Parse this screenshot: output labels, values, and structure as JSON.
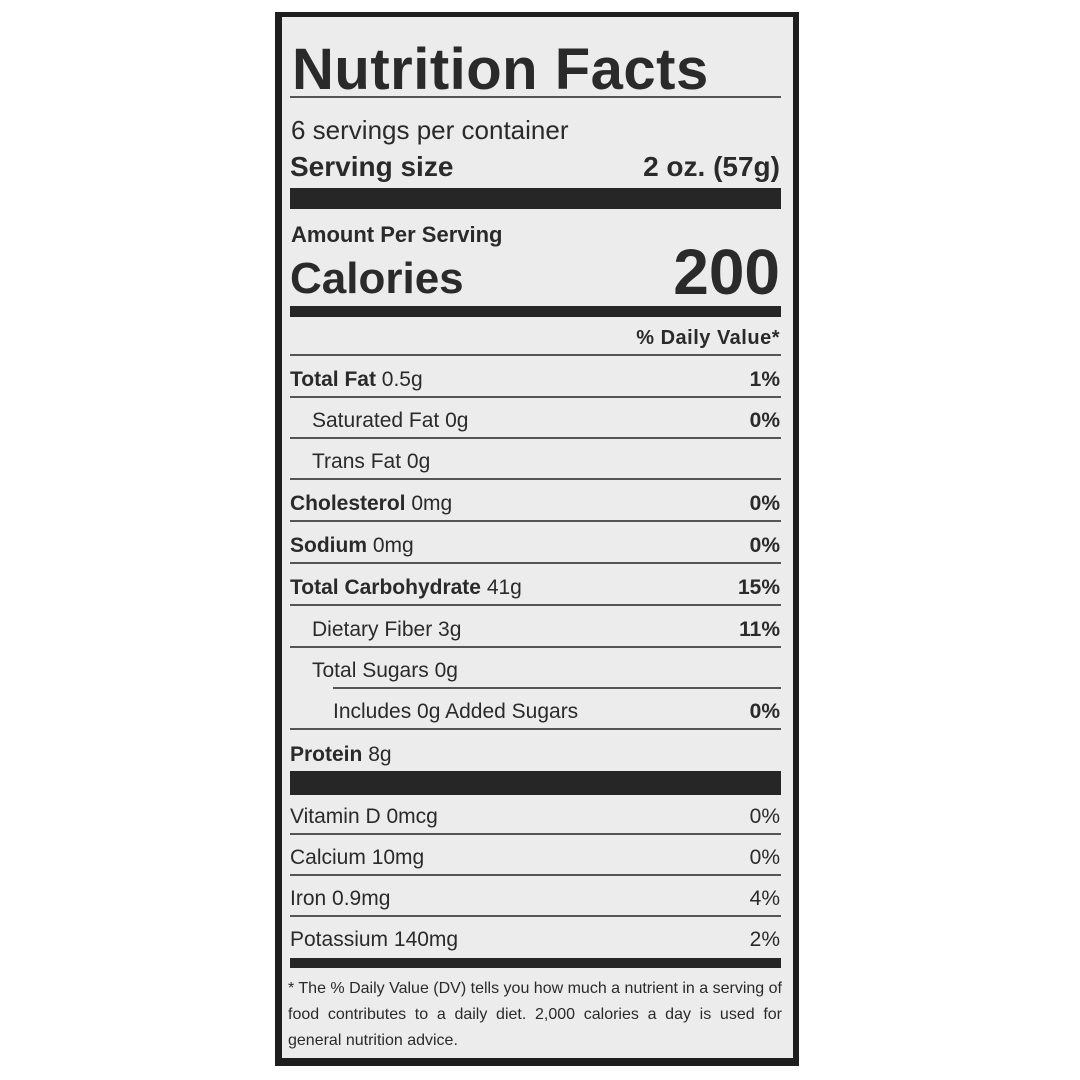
{
  "title": "Nutrition Facts",
  "servings_per_container": "6 servings per container",
  "serving_size": {
    "label": "Serving size",
    "value": "2 oz. (57g)"
  },
  "amount_per_serving": "Amount Per Serving",
  "calories": {
    "label": "Calories",
    "value": "200"
  },
  "daily_value_header": "% Daily Value*",
  "nutrients": [
    {
      "name": "Total Fat",
      "amount": "0.5g",
      "dv": "1%"
    },
    {
      "name": "Saturated Fat",
      "amount": "0g",
      "dv": "0%"
    },
    {
      "name": "Trans Fat",
      "amount": "0g",
      "dv": ""
    },
    {
      "name": "Cholesterol",
      "amount": "0mg",
      "dv": "0%"
    },
    {
      "name": "Sodium",
      "amount": "0mg",
      "dv": "0%"
    },
    {
      "name": "Total Carbohydrate",
      "amount": "41g",
      "dv": "15%"
    },
    {
      "name": "Dietary Fiber",
      "amount": "3g",
      "dv": "11%"
    },
    {
      "name": "Total Sugars",
      "amount": "0g",
      "dv": ""
    },
    {
      "name": "Includes 0g Added Sugars",
      "amount": "",
      "dv": "0%"
    },
    {
      "name": "Protein",
      "amount": "8g",
      "dv": ""
    }
  ],
  "vitamins": [
    {
      "name": "Vitamin D",
      "amount": "0mcg",
      "dv": "0%"
    },
    {
      "name": "Calcium",
      "amount": "10mg",
      "dv": "0%"
    },
    {
      "name": "Iron",
      "amount": "0.9mg",
      "dv": "4%"
    },
    {
      "name": "Potassium",
      "amount": "140mg",
      "dv": "2%"
    }
  ],
  "footnote": "* The % Daily Value (DV) tells you how much a nutrient in a serving of food contributes to a daily diet. 2,000 calories a day is used for general nutrition advice."
}
